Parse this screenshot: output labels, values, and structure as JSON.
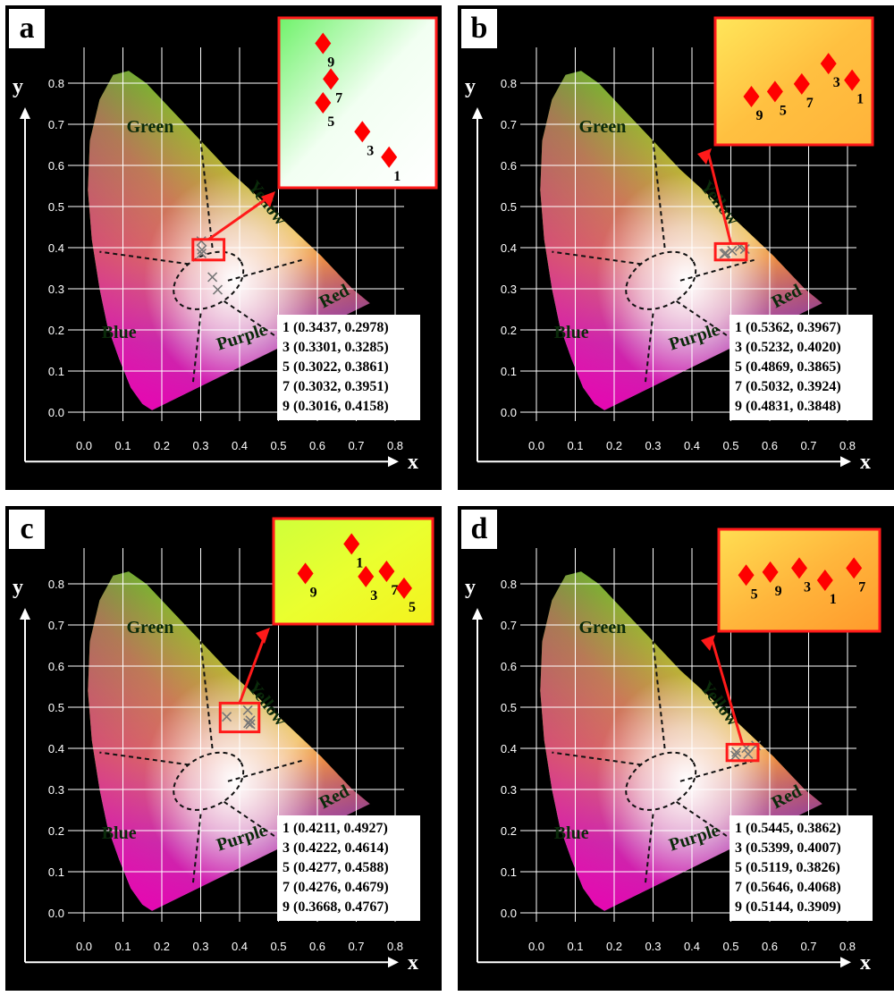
{
  "panels": [
    {
      "label": "a",
      "legend": [
        "1 (0.3437, 0.2978)",
        "3 (0.3301, 0.3285)",
        "5 (0.3022, 0.3861)",
        "7 (0.3032, 0.3951)",
        "9 (0.3016, 0.4158)"
      ],
      "inset_labels": [
        "9",
        "7",
        "5",
        "3",
        "1"
      ],
      "inset_bg": [
        "#6ff26a",
        "#f2fff2",
        "#ffffff"
      ]
    },
    {
      "label": "b",
      "legend": [
        "1 (0.5362, 0.3967)",
        "3 (0.5232, 0.4020)",
        "5 (0.4869, 0.3865)",
        "7 (0.5032, 0.3924)",
        "9 (0.4831, 0.3848)"
      ],
      "inset_labels": [
        "9",
        "5",
        "7",
        "3",
        "1"
      ],
      "inset_bg": [
        "#ffe65a",
        "#ffc040",
        "#ffb33a"
      ]
    },
    {
      "label": "c",
      "legend": [
        "1 (0.4211, 0.4927)",
        "3 (0.4222, 0.4614)",
        "5 (0.4277, 0.4588)",
        "7 (0.4276, 0.4679)",
        "9 (0.3668, 0.4767)"
      ],
      "inset_labels": [
        "9",
        "1",
        "3",
        "7",
        "5"
      ],
      "inset_bg": [
        "#cfff3a",
        "#eaff2f",
        "#f4f21e"
      ]
    },
    {
      "label": "d",
      "legend": [
        "1 (0.5445, 0.3862)",
        "3 (0.5399, 0.4007)",
        "5 (0.5119, 0.3826)",
        "7 (0.5646, 0.4068)",
        "9 (0.5144, 0.3909)"
      ],
      "inset_labels": [
        "5",
        "9",
        "3",
        "1",
        "7"
      ],
      "inset_bg": [
        "#ffde52",
        "#ffb63c",
        "#ff9a2c"
      ]
    }
  ],
  "chart_data": [
    {
      "type": "scatter",
      "title": "a",
      "xlabel": "x",
      "ylabel": "y",
      "xlim": [
        0.0,
        0.8
      ],
      "ylim": [
        0.0,
        0.8
      ],
      "grid": true,
      "region_labels": [
        "Green",
        "Yellow",
        "Red",
        "Purple",
        "Blue"
      ],
      "x_ticks": [
        "0.0",
        "0.1",
        "0.2",
        "0.3",
        "0.4",
        "0.5",
        "0.6",
        "0.7",
        "0.8"
      ],
      "y_ticks": [
        "0.0",
        "0.1",
        "0.2",
        "0.3",
        "0.4",
        "0.5",
        "0.6",
        "0.7",
        "0.8"
      ],
      "series": [
        {
          "labels": [
            "1",
            "3",
            "5",
            "7",
            "9"
          ],
          "x": [
            0.3437,
            0.3301,
            0.3022,
            0.3032,
            0.3016
          ],
          "y": [
            0.2978,
            0.3285,
            0.3861,
            0.3951,
            0.4158
          ]
        }
      ]
    },
    {
      "type": "scatter",
      "title": "b",
      "xlabel": "x",
      "ylabel": "y",
      "xlim": [
        0.0,
        0.8
      ],
      "ylim": [
        0.0,
        0.8
      ],
      "grid": true,
      "region_labels": [
        "Green",
        "Yellow",
        "Red",
        "Purple",
        "Blue"
      ],
      "x_ticks": [
        "0.0",
        "0.1",
        "0.2",
        "0.3",
        "0.4",
        "0.5",
        "0.6",
        "0.7",
        "0.8"
      ],
      "y_ticks": [
        "0.0",
        "0.1",
        "0.2",
        "0.3",
        "0.4",
        "0.5",
        "0.6",
        "0.7",
        "0.8"
      ],
      "series": [
        {
          "labels": [
            "1",
            "3",
            "5",
            "7",
            "9"
          ],
          "x": [
            0.5362,
            0.5232,
            0.4869,
            0.5032,
            0.4831
          ],
          "y": [
            0.3967,
            0.402,
            0.3865,
            0.3924,
            0.3848
          ]
        }
      ]
    },
    {
      "type": "scatter",
      "title": "c",
      "xlabel": "x",
      "ylabel": "y",
      "xlim": [
        0.0,
        0.8
      ],
      "ylim": [
        0.0,
        0.8
      ],
      "grid": true,
      "region_labels": [
        "Green",
        "Yellow",
        "Red",
        "Purple",
        "Blue"
      ],
      "x_ticks": [
        "0.0",
        "0.1",
        "0.2",
        "0.3",
        "0.4",
        "0.5",
        "0.6",
        "0.7",
        "0.8"
      ],
      "y_ticks": [
        "0.0",
        "0.1",
        "0.2",
        "0.3",
        "0.4",
        "0.5",
        "0.6",
        "0.7",
        "0.8"
      ],
      "series": [
        {
          "labels": [
            "1",
            "3",
            "5",
            "7",
            "9"
          ],
          "x": [
            0.4211,
            0.4222,
            0.4277,
            0.4276,
            0.3668
          ],
          "y": [
            0.4927,
            0.4614,
            0.4588,
            0.4679,
            0.4767
          ]
        }
      ]
    },
    {
      "type": "scatter",
      "title": "d",
      "xlabel": "x",
      "ylabel": "y",
      "xlim": [
        0.0,
        0.8
      ],
      "ylim": [
        0.0,
        0.8
      ],
      "grid": true,
      "region_labels": [
        "Green",
        "Yellow",
        "Red",
        "Purple",
        "Blue"
      ],
      "x_ticks": [
        "0.0",
        "0.1",
        "0.2",
        "0.3",
        "0.4",
        "0.5",
        "0.6",
        "0.7",
        "0.8"
      ],
      "y_ticks": [
        "0.0",
        "0.1",
        "0.2",
        "0.3",
        "0.4",
        "0.5",
        "0.6",
        "0.7",
        "0.8"
      ],
      "series": [
        {
          "labels": [
            "1",
            "3",
            "5",
            "7",
            "9"
          ],
          "x": [
            0.5445,
            0.5399,
            0.5119,
            0.5646,
            0.5144
          ],
          "y": [
            0.3862,
            0.4007,
            0.3826,
            0.4068,
            0.3909
          ]
        }
      ]
    }
  ],
  "colors": {
    "marker": "#ff0000",
    "box": "#ff1a1a",
    "background": "#000000",
    "axis": "#ffffff"
  }
}
